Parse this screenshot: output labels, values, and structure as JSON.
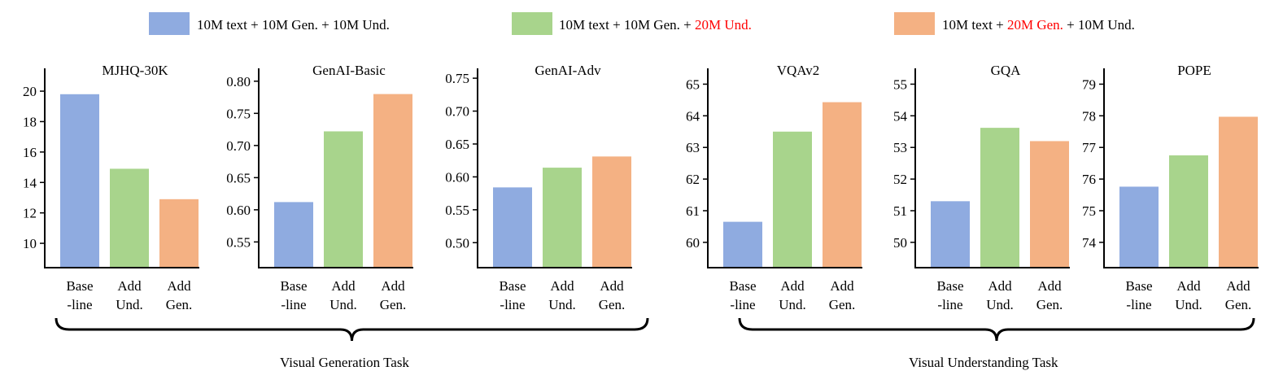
{
  "legend": [
    {
      "name": "baseline",
      "color": "#8fabe0",
      "parts": [
        "10M text + 10M Gen. + 10M Und."
      ],
      "highlight": []
    },
    {
      "name": "add-und",
      "color": "#a8d48c",
      "parts": [
        "10M text + 10M Gen. + ",
        "20M Und."
      ],
      "highlight": [
        1
      ]
    },
    {
      "name": "add-gen",
      "color": "#f4b183",
      "parts": [
        "10M text + ",
        "20M Gen.",
        " + 10M Und."
      ],
      "highlight": [
        1
      ]
    }
  ],
  "groups": {
    "generation": "Visual Generation Task",
    "understanding": "Visual Understanding Task"
  },
  "chart_data": [
    {
      "type": "bar",
      "title": "MJHQ-30K",
      "categories": [
        "Base\n-line",
        "Add\nUnd.",
        "Add\nGen."
      ],
      "values": [
        19.8,
        14.9,
        12.9
      ],
      "colors": [
        "#8fabe0",
        "#a8d48c",
        "#f4b183"
      ],
      "ylim": [
        8.4,
        21.5
      ],
      "yticks": [
        10,
        12,
        14,
        16,
        18,
        20
      ],
      "tick_decimals": 0
    },
    {
      "type": "bar",
      "title": "GenAI-Basic",
      "categories": [
        "Base\n-line",
        "Add\nUnd.",
        "Add\nGen."
      ],
      "values": [
        0.612,
        0.722,
        0.78
      ],
      "colors": [
        "#8fabe0",
        "#a8d48c",
        "#f4b183"
      ],
      "ylim": [
        0.51,
        0.82
      ],
      "yticks": [
        0.55,
        0.6,
        0.65,
        0.7,
        0.75,
        0.8
      ],
      "tick_decimals": 2
    },
    {
      "type": "bar",
      "title": "GenAI-Adv",
      "categories": [
        "Base\n-line",
        "Add\nUnd.",
        "Add\nGen."
      ],
      "values": [
        0.584,
        0.614,
        0.631
      ],
      "colors": [
        "#8fabe0",
        "#a8d48c",
        "#f4b183"
      ],
      "ylim": [
        0.462,
        0.765
      ],
      "yticks": [
        0.5,
        0.55,
        0.6,
        0.65,
        0.7,
        0.75
      ],
      "tick_decimals": 2
    },
    {
      "type": "bar",
      "title": "VQAv2",
      "categories": [
        "Base\n-line",
        "Add\nUnd.",
        "Add\nGen."
      ],
      "values": [
        60.65,
        63.5,
        64.43
      ],
      "colors": [
        "#8fabe0",
        "#a8d48c",
        "#f4b183"
      ],
      "ylim": [
        59.2,
        65.5
      ],
      "yticks": [
        60,
        61,
        62,
        63,
        64,
        65
      ],
      "tick_decimals": 0
    },
    {
      "type": "bar",
      "title": "GQA",
      "categories": [
        "Base\n-line",
        "Add\nUnd.",
        "Add\nGen."
      ],
      "values": [
        51.3,
        53.62,
        53.2
      ],
      "colors": [
        "#8fabe0",
        "#a8d48c",
        "#f4b183"
      ],
      "ylim": [
        49.2,
        55.5
      ],
      "yticks": [
        50,
        51,
        52,
        53,
        54,
        55
      ],
      "tick_decimals": 0
    },
    {
      "type": "bar",
      "title": "POPE",
      "categories": [
        "Base\n-line",
        "Add\nUnd.",
        "Add\nGen."
      ],
      "values": [
        75.76,
        76.75,
        77.97
      ],
      "colors": [
        "#8fabe0",
        "#a8d48c",
        "#f4b183"
      ],
      "ylim": [
        73.2,
        79.5
      ],
      "yticks": [
        74,
        75,
        76,
        77,
        78,
        79
      ],
      "tick_decimals": 0
    }
  ]
}
